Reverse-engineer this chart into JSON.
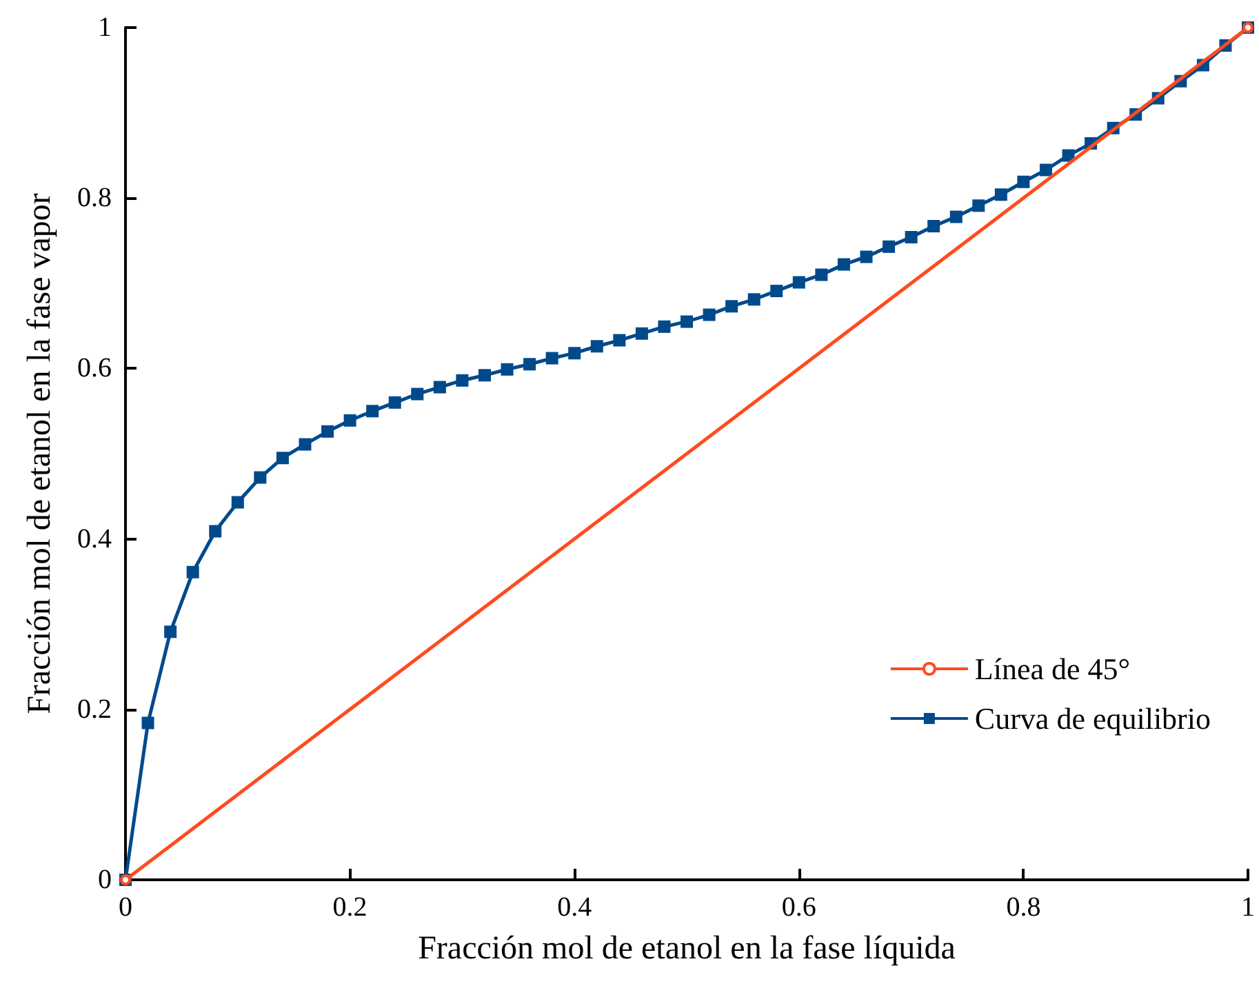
{
  "chart_data": {
    "type": "line",
    "xlabel": "Fracción mol de etanol en la fase líquida",
    "ylabel": "Fracción mol de etanol en la fase vapor",
    "xlim": [
      0,
      1
    ],
    "ylim": [
      0,
      1
    ],
    "xticks": [
      0,
      0.2,
      0.4,
      0.6,
      0.8,
      1
    ],
    "yticks": [
      0,
      0.2,
      0.4,
      0.6,
      0.8,
      1
    ],
    "grid": false,
    "legend": "bottom right",
    "series": [
      {
        "name": "Línea de 45°",
        "color": "#ff4b1f",
        "marker": "circle",
        "x": [
          0,
          1
        ],
        "values": [
          0,
          1
        ]
      },
      {
        "name": "Curva de equilibrio",
        "color": "#004a8c",
        "marker": "square",
        "x": [
          0,
          0.02,
          0.04,
          0.06,
          0.08,
          0.1,
          0.12,
          0.14,
          0.16,
          0.18,
          0.2,
          0.22,
          0.24,
          0.26,
          0.28,
          0.3,
          0.32,
          0.34,
          0.36,
          0.38,
          0.4,
          0.42,
          0.44,
          0.46,
          0.48,
          0.5,
          0.52,
          0.54,
          0.56,
          0.58,
          0.6,
          0.62,
          0.64,
          0.66,
          0.68,
          0.7,
          0.72,
          0.74,
          0.76,
          0.78,
          0.8,
          0.82,
          0.84,
          0.86,
          0.88,
          0.9,
          0.92,
          0.94,
          0.96,
          0.98,
          1
        ],
        "values": [
          0,
          0.184,
          0.291,
          0.361,
          0.409,
          0.443,
          0.472,
          0.495,
          0.511,
          0.526,
          0.539,
          0.55,
          0.56,
          0.57,
          0.578,
          0.586,
          0.592,
          0.599,
          0.605,
          0.612,
          0.618,
          0.626,
          0.633,
          0.641,
          0.649,
          0.655,
          0.663,
          0.673,
          0.681,
          0.691,
          0.701,
          0.71,
          0.722,
          0.731,
          0.743,
          0.754,
          0.767,
          0.778,
          0.791,
          0.804,
          0.819,
          0.833,
          0.85,
          0.864,
          0.882,
          0.898,
          0.917,
          0.937,
          0.956,
          0.979,
          1
        ]
      }
    ]
  }
}
